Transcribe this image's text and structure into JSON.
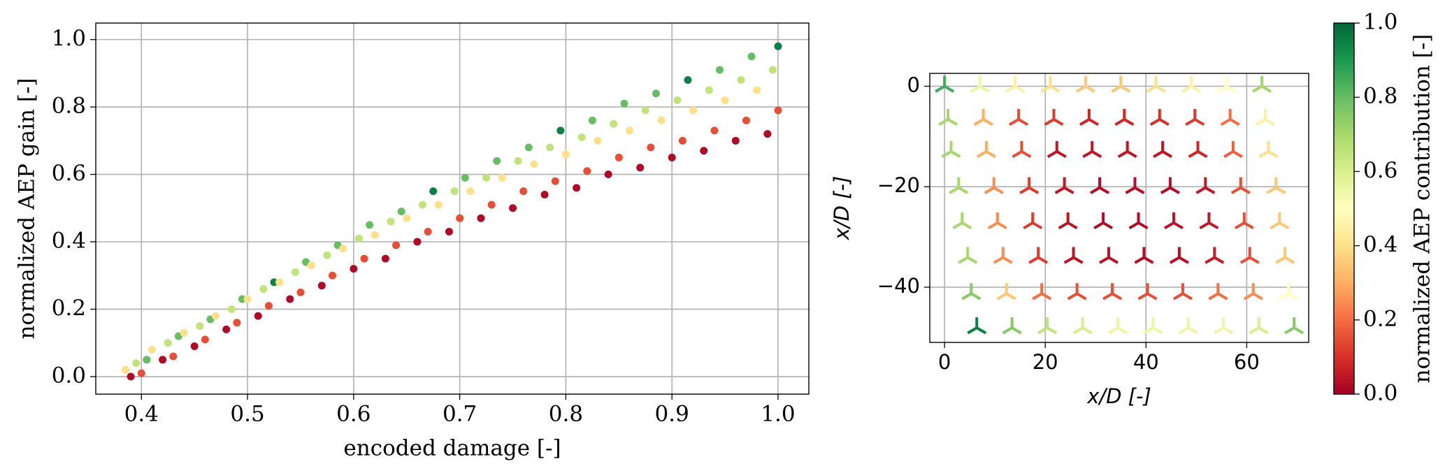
{
  "chart_data": [
    {
      "type": "scatter",
      "marker": "circle",
      "xlabel": "encoded damage [-]",
      "ylabel": "normalized AEP gain [-]",
      "xlim": [
        0.357,
        1.029
      ],
      "ylim": [
        -0.052,
        1.049
      ],
      "xticks": [
        0.4,
        0.5,
        0.6,
        0.7,
        0.8,
        0.9,
        {
          "value": 1.0,
          "label": "1.0"
        }
      ],
      "yticks": [
        {
          "value": 0.0,
          "label": "0.0"
        },
        0.2,
        0.4,
        0.6,
        0.8,
        {
          "value": 1.0,
          "label": "1.0"
        }
      ],
      "grid": true,
      "x": [
        0.39,
        0.4,
        0.385,
        0.395,
        0.405,
        0.42,
        0.43,
        0.41,
        0.425,
        0.435,
        0.45,
        0.46,
        0.44,
        0.455,
        0.465,
        0.48,
        0.49,
        0.47,
        0.485,
        0.495,
        0.51,
        0.52,
        0.5,
        0.515,
        0.525,
        0.54,
        0.55,
        0.53,
        0.545,
        0.555,
        0.57,
        0.58,
        0.56,
        0.575,
        0.585,
        0.6,
        0.61,
        0.59,
        0.605,
        0.615,
        0.63,
        0.64,
        0.62,
        0.635,
        0.645,
        0.66,
        0.67,
        0.65,
        0.665,
        0.675,
        0.69,
        0.7,
        0.68,
        0.695,
        0.705,
        0.72,
        0.73,
        0.71,
        0.725,
        0.735,
        0.75,
        0.76,
        0.74,
        0.755,
        0.765,
        0.78,
        0.79,
        0.77,
        0.785,
        0.795,
        0.81,
        0.82,
        0.8,
        0.815,
        0.825,
        0.84,
        0.85,
        0.83,
        0.845,
        0.855,
        0.87,
        0.88,
        0.86,
        0.875,
        0.885,
        0.9,
        0.91,
        0.89,
        0.905,
        0.915,
        0.93,
        0.94,
        0.92,
        0.935,
        0.945,
        0.96,
        0.97,
        0.95,
        0.965,
        0.975,
        0.99,
        1.0,
        0.98,
        0.995,
        1.0
      ],
      "y": [
        0.0,
        0.01,
        0.02,
        0.04,
        0.05,
        0.05,
        0.06,
        0.08,
        0.1,
        0.12,
        0.09,
        0.11,
        0.13,
        0.15,
        0.17,
        0.14,
        0.16,
        0.18,
        0.2,
        0.23,
        0.18,
        0.21,
        0.23,
        0.26,
        0.28,
        0.23,
        0.25,
        0.28,
        0.31,
        0.34,
        0.27,
        0.3,
        0.33,
        0.36,
        0.39,
        0.32,
        0.35,
        0.38,
        0.41,
        0.45,
        0.35,
        0.39,
        0.42,
        0.46,
        0.49,
        0.4,
        0.43,
        0.47,
        0.51,
        0.55,
        0.43,
        0.47,
        0.51,
        0.55,
        0.59,
        0.47,
        0.51,
        0.55,
        0.59,
        0.64,
        0.5,
        0.55,
        0.59,
        0.64,
        0.68,
        0.54,
        0.58,
        0.63,
        0.68,
        0.73,
        0.56,
        0.61,
        0.66,
        0.71,
        0.76,
        0.6,
        0.65,
        0.7,
        0.75,
        0.81,
        0.62,
        0.68,
        0.73,
        0.79,
        0.84,
        0.65,
        0.7,
        0.76,
        0.82,
        0.88,
        0.67,
        0.73,
        0.79,
        0.85,
        0.91,
        0.7,
        0.76,
        0.82,
        0.88,
        0.95,
        0.72,
        0.79,
        0.85,
        0.91,
        0.98
      ],
      "c": [
        0.02,
        0.15,
        0.4,
        0.65,
        0.8,
        0.02,
        0.15,
        0.4,
        0.65,
        0.8,
        0.02,
        0.15,
        0.4,
        0.65,
        0.8,
        0.02,
        0.15,
        0.4,
        0.65,
        0.8,
        0.02,
        0.15,
        0.4,
        0.65,
        0.95,
        0.02,
        0.15,
        0.4,
        0.65,
        0.8,
        0.02,
        0.15,
        0.4,
        0.65,
        0.8,
        0.02,
        0.15,
        0.4,
        0.65,
        0.8,
        0.02,
        0.15,
        0.4,
        0.65,
        0.8,
        0.02,
        0.15,
        0.4,
        0.65,
        0.95,
        0.02,
        0.15,
        0.4,
        0.65,
        0.8,
        0.02,
        0.15,
        0.4,
        0.65,
        0.8,
        0.02,
        0.15,
        0.4,
        0.65,
        0.8,
        0.02,
        0.15,
        0.4,
        0.65,
        0.95,
        0.02,
        0.15,
        0.4,
        0.65,
        0.8,
        0.02,
        0.15,
        0.4,
        0.65,
        0.8,
        0.02,
        0.15,
        0.4,
        0.65,
        0.8,
        0.02,
        0.15,
        0.4,
        0.65,
        0.95,
        0.02,
        0.15,
        0.4,
        0.65,
        0.8,
        0.02,
        0.15,
        0.4,
        0.65,
        0.8,
        0.02,
        0.15,
        0.4,
        0.65,
        0.95
      ]
    },
    {
      "type": "scatter",
      "marker": "tri",
      "xlabel": "x/D [-]",
      "ylabel": "x/D [-]",
      "xlim": [
        -2.93,
        72.3
      ],
      "ylim": [
        -51.0,
        2.57
      ],
      "xticks": [
        0,
        20,
        40,
        60
      ],
      "yticks": [
        0,
        {
          "value": -20,
          "label": "−20"
        },
        {
          "value": -40,
          "label": "−40"
        }
      ],
      "grid": true,
      "x": [
        0,
        7,
        14,
        21,
        28,
        35,
        42,
        49,
        56,
        63,
        0.7,
        7.7,
        14.7,
        21.7,
        28.7,
        35.7,
        42.7,
        49.7,
        56.7,
        63.7,
        1.3,
        8.3,
        15.3,
        22.3,
        29.3,
        36.3,
        43.3,
        50.3,
        57.3,
        64.3,
        2.8,
        9.8,
        16.8,
        23.8,
        30.8,
        37.8,
        44.8,
        51.8,
        58.8,
        65.8,
        3.5,
        10.5,
        17.5,
        24.5,
        31.5,
        38.5,
        45.5,
        52.5,
        59.5,
        66.5,
        4.6,
        11.6,
        18.6,
        25.6,
        32.6,
        39.6,
        46.6,
        53.6,
        60.6,
        67.6,
        5.3,
        12.3,
        19.3,
        26.3,
        33.3,
        40.3,
        47.3,
        54.3,
        61.3,
        68.3,
        6.4,
        13.4,
        20.4,
        27.4,
        34.4,
        41.4,
        48.4,
        55.4,
        62.4,
        69.4
      ],
      "y": [
        0,
        0,
        0,
        0,
        0,
        0,
        0,
        0,
        0,
        0,
        -6.6,
        -6.6,
        -6.6,
        -6.6,
        -6.6,
        -6.6,
        -6.6,
        -6.6,
        -6.6,
        -6.6,
        -13,
        -13,
        -13,
        -13,
        -13,
        -13,
        -13,
        -13,
        -13,
        -13,
        -20.2,
        -20.2,
        -20.2,
        -20.2,
        -20.2,
        -20.2,
        -20.2,
        -20.2,
        -20.2,
        -20.2,
        -27.2,
        -27.2,
        -27.2,
        -27.2,
        -27.2,
        -27.2,
        -27.2,
        -27.2,
        -27.2,
        -27.2,
        -34.1,
        -34.1,
        -34.1,
        -34.1,
        -34.1,
        -34.1,
        -34.1,
        -34.1,
        -34.1,
        -34.1,
        -41.3,
        -41.3,
        -41.3,
        -41.3,
        -41.3,
        -41.3,
        -41.3,
        -41.3,
        -41.3,
        -41.3,
        -48.1,
        -48.1,
        -48.1,
        -48.1,
        -48.1,
        -48.1,
        -48.1,
        -48.1,
        -48.1,
        -48.1
      ],
      "c": [
        0.85,
        0.55,
        0.45,
        0.4,
        0.35,
        0.35,
        0.4,
        0.45,
        0.5,
        0.7,
        0.7,
        0.3,
        0.15,
        0.12,
        0.08,
        0.08,
        0.1,
        0.12,
        0.2,
        0.45,
        0.7,
        0.3,
        0.15,
        0.05,
        0.05,
        0.05,
        0.05,
        0.08,
        0.18,
        0.4,
        0.7,
        0.25,
        0.12,
        0.05,
        0.03,
        0.03,
        0.03,
        0.05,
        0.15,
        0.35,
        0.7,
        0.25,
        0.12,
        0.04,
        0.03,
        0.02,
        0.04,
        0.05,
        0.15,
        0.35,
        0.7,
        0.25,
        0.12,
        0.04,
        0.04,
        0.03,
        0.03,
        0.06,
        0.15,
        0.35,
        0.75,
        0.35,
        0.2,
        0.15,
        0.15,
        0.15,
        0.15,
        0.2,
        0.25,
        0.5,
        0.95,
        0.75,
        0.65,
        0.6,
        0.55,
        0.55,
        0.55,
        0.55,
        0.6,
        0.75
      ],
      "colorbar": {
        "label": "normalized AEP contribution [-]",
        "lim": [
          0,
          1
        ],
        "ticks": [
          {
            "value": 0.0,
            "label": "0.0"
          },
          0.2,
          0.4,
          0.6,
          0.8,
          {
            "value": 1.0,
            "label": "1.0"
          }
        ],
        "colormap": [
          "#a50026",
          "#d73027",
          "#f46d43",
          "#fdae61",
          "#fee08b",
          "#ffffbf",
          "#d9ef8b",
          "#a6d96a",
          "#66bd63",
          "#1a9850",
          "#006837"
        ]
      }
    }
  ]
}
